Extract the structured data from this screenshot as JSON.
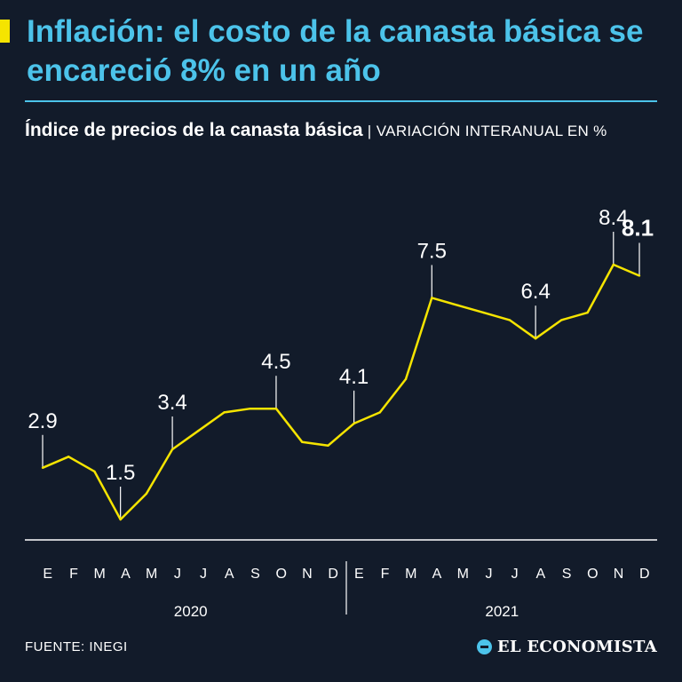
{
  "title": "Inflación: el costo de la canasta básica se encareció 8% en un año",
  "subtitle": {
    "main": "Índice de precios de la canasta básica",
    "separator": "|",
    "unit": "VARIACIÓN INTERANUAL EN %"
  },
  "source": "FUENTE: INEGI",
  "brand": "EL ECONOMISTA",
  "colors": {
    "background": "#121b2a",
    "title": "#4cc3ea",
    "line": "#f5e400",
    "text": "#ffffff"
  },
  "chart_data": {
    "type": "line",
    "title": "Índice de precios de la canasta básica",
    "ylabel": "Variación interanual en %",
    "xlabel": "",
    "x": [
      "E",
      "F",
      "M",
      "A",
      "M",
      "J",
      "J",
      "A",
      "S",
      "O",
      "N",
      "D",
      "E",
      "F",
      "M",
      "A",
      "M",
      "J",
      "J",
      "A",
      "S",
      "O",
      "N",
      "D"
    ],
    "years": [
      {
        "label": "2020",
        "start": 0,
        "end": 11
      },
      {
        "label": "2021",
        "start": 12,
        "end": 23
      }
    ],
    "series": [
      {
        "name": "Canasta básica",
        "values": [
          2.9,
          3.2,
          2.8,
          1.5,
          2.2,
          3.4,
          3.9,
          4.4,
          4.5,
          4.5,
          3.6,
          3.5,
          4.1,
          4.4,
          5.3,
          7.5,
          7.3,
          7.1,
          6.9,
          6.4,
          6.9,
          7.1,
          8.4,
          8.1
        ]
      }
    ],
    "annotations": [
      {
        "index": 0,
        "label": "2.9",
        "bold": false
      },
      {
        "index": 3,
        "label": "1.5",
        "bold": false
      },
      {
        "index": 5,
        "label": "3.4",
        "bold": false
      },
      {
        "index": 9,
        "label": "4.5",
        "bold": false
      },
      {
        "index": 12,
        "label": "4.1",
        "bold": false
      },
      {
        "index": 15,
        "label": "7.5",
        "bold": false
      },
      {
        "index": 19,
        "label": "6.4",
        "bold": false
      },
      {
        "index": 22,
        "label": "8.4",
        "bold": false
      },
      {
        "index": 23,
        "label": "8.1",
        "bold": true
      }
    ],
    "ylim": [
      0,
      10
    ],
    "grid": false
  }
}
